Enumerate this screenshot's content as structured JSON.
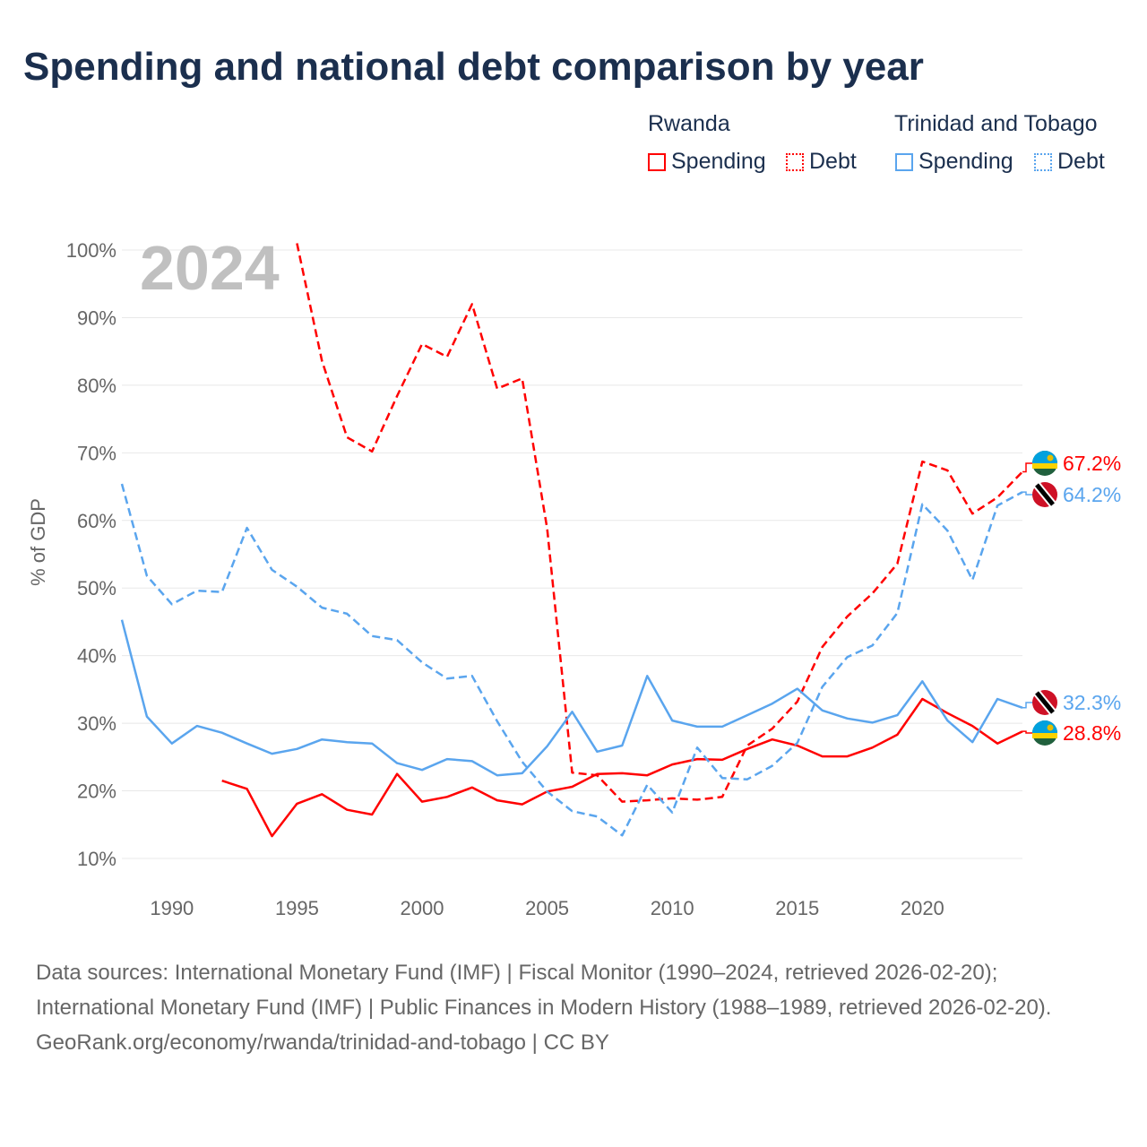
{
  "title": "Spending and national debt comparison by year",
  "legend": {
    "groups": [
      {
        "country": "Rwanda",
        "spending": "Spending",
        "debt": "Debt",
        "color": "#ff0000"
      },
      {
        "country": "Trinidad and Tobago",
        "spending": "Spending",
        "debt": "Debt",
        "color": "#5aa5ee"
      }
    ]
  },
  "footer": {
    "sources": "Data sources: International Monetary Fund (IMF) | Fiscal Monitor (1990–2024, retrieved 2026-02-20); International Monetary Fund (IMF) | Public Finances in Modern History (1988–1989, retrieved 2026-02-20).",
    "credit": "GeoRank.org/economy/rwanda/trinidad-and-tobago | CC BY"
  },
  "chart_data": {
    "type": "line",
    "title": "Spending and national debt comparison by year",
    "year_label": "2024",
    "ylabel": "% of GDP",
    "xlim": [
      1988,
      2024
    ],
    "ylim": [
      10,
      100
    ],
    "yticks": [
      10,
      20,
      30,
      40,
      50,
      60,
      70,
      80,
      90,
      100
    ],
    "ytick_labels": [
      "10%",
      "20%",
      "30%",
      "40%",
      "50%",
      "60%",
      "70%",
      "80%",
      "90%",
      "100%"
    ],
    "xticks": [
      1990,
      1995,
      2000,
      2005,
      2010,
      2015,
      2020
    ],
    "xtick_labels": [
      "1990",
      "1995",
      "2000",
      "2005",
      "2010",
      "2015",
      "2020"
    ],
    "grid": true,
    "legend_position": "top-right",
    "series": [
      {
        "name": "Rwanda Spending",
        "country": "Rwanda",
        "style": "solid",
        "color": "#ff0000",
        "start": 1992,
        "end_label": "28.8%",
        "values": [
          21.5,
          20.3,
          13.3,
          18.1,
          19.5,
          17.2,
          16.5,
          22.5,
          18.4,
          19.1,
          20.5,
          18.6,
          18.0,
          19.9,
          20.6,
          22.5,
          22.6,
          22.3,
          23.9,
          24.7,
          24.6,
          26.2,
          27.6,
          26.7,
          25.1,
          25.1,
          26.4,
          28.3,
          33.6,
          31.5,
          29.6,
          27.0,
          28.8
        ]
      },
      {
        "name": "Rwanda Debt",
        "country": "Rwanda",
        "style": "dashed",
        "color": "#ff0000",
        "start": 1995,
        "end_label": "67.2%",
        "values": [
          101,
          83.6,
          72.3,
          70.2,
          78.4,
          86.1,
          84.2,
          92.0,
          79.5,
          81.0,
          58.8,
          22.7,
          22.3,
          18.4,
          18.6,
          18.9,
          18.7,
          19.1,
          26.7,
          29.2,
          33.2,
          41.3,
          45.8,
          49.2,
          53.6,
          68.7,
          67.4,
          61.0,
          63.4,
          67.2
        ]
      },
      {
        "name": "Trinidad and Tobago Spending",
        "country": "Trinidad and Tobago",
        "style": "solid",
        "color": "#5aa5ee",
        "start": 1988,
        "end_label": "32.3%",
        "values": [
          45.3,
          31.0,
          27.0,
          29.6,
          28.6,
          27.0,
          25.5,
          26.2,
          27.6,
          27.2,
          27.0,
          24.1,
          23.1,
          24.7,
          24.4,
          22.3,
          22.6,
          26.6,
          31.7,
          25.8,
          26.7,
          37.0,
          30.4,
          29.5,
          29.5,
          31.2,
          32.9,
          35.1,
          31.9,
          30.7,
          30.1,
          31.2,
          36.2,
          30.4,
          27.2,
          33.6,
          32.3
        ]
      },
      {
        "name": "Trinidad and Tobago Debt",
        "country": "Trinidad and Tobago",
        "style": "dashed",
        "color": "#5aa5ee",
        "start": 1988,
        "end_label": "64.2%",
        "values": [
          65.4,
          51.8,
          47.6,
          49.6,
          49.4,
          58.9,
          52.7,
          50.2,
          47.1,
          46.2,
          42.9,
          42.3,
          39.0,
          36.6,
          37.0,
          30.3,
          24.3,
          19.9,
          17.0,
          16.2,
          13.4,
          20.9,
          16.8,
          26.4,
          21.9,
          21.7,
          23.7,
          27.1,
          35.4,
          39.8,
          41.5,
          46.3,
          62.4,
          58.5,
          51.2,
          62.2,
          64.2
        ]
      }
    ]
  }
}
